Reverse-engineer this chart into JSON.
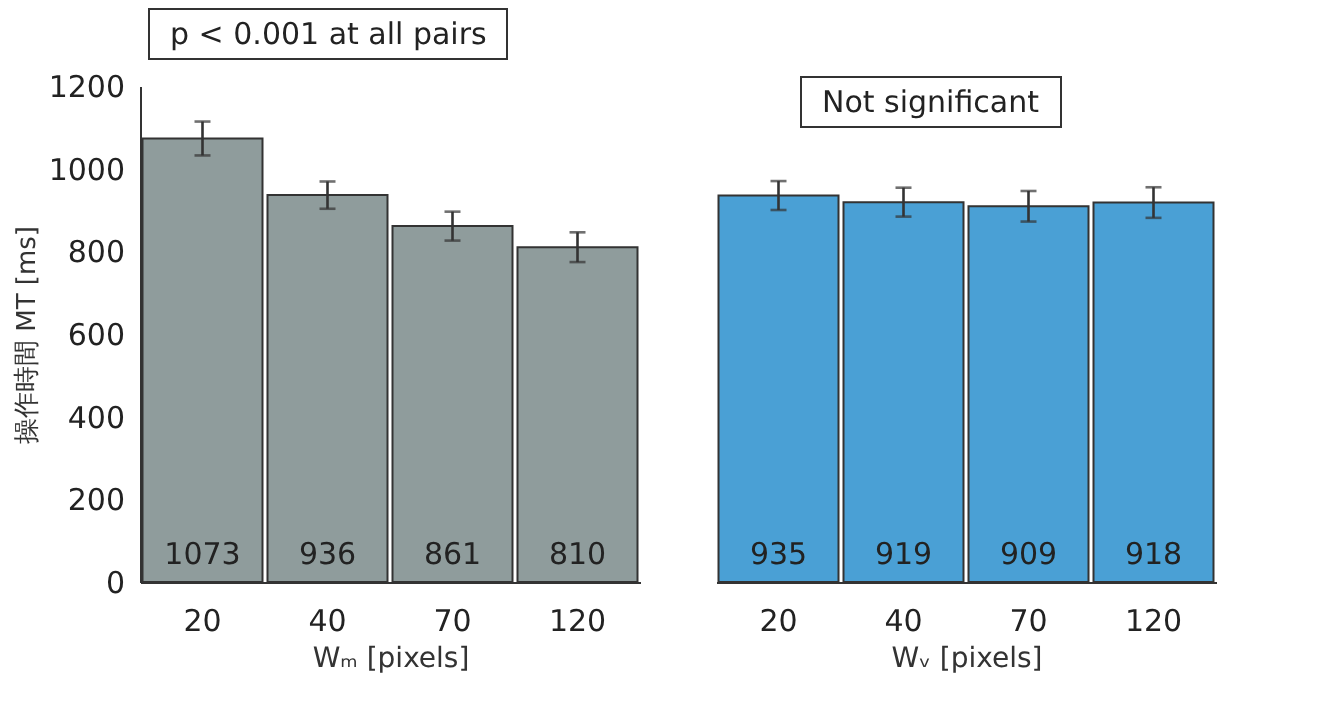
{
  "chart_data": [
    {
      "type": "bar",
      "categories": [
        "20",
        "40",
        "70",
        "120"
      ],
      "values": [
        1073,
        936,
        861,
        810
      ],
      "errors": [
        41,
        33,
        35,
        36
      ],
      "color": "#8f9c9c",
      "data_labels": true,
      "xlabel": "Wₘ [pixels]",
      "ylabel": "操作時間 MT [ms]",
      "ylim": [
        0,
        1200
      ],
      "yticks": [
        0,
        200,
        400,
        600,
        800,
        1000,
        1200
      ],
      "grid": false,
      "annotations": [
        "p < 0.001 at all pairs"
      ]
    },
    {
      "type": "bar",
      "categories": [
        "20",
        "40",
        "70",
        "120"
      ],
      "values": [
        935,
        919,
        909,
        918
      ],
      "errors": [
        35,
        35,
        37,
        37
      ],
      "color": "#4aa0d5",
      "data_labels": true,
      "xlabel": "Wᵥ [pixels]",
      "ylim": [
        0,
        1200
      ],
      "grid": false,
      "tick_labels": "x",
      "annotations": [
        "Not significant"
      ]
    }
  ]
}
